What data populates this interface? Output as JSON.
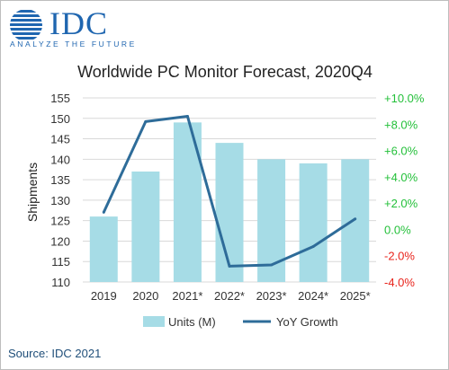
{
  "logo": {
    "wordmark": "IDC",
    "tagline": "ANALYZE THE FUTURE"
  },
  "source": "Source: IDC 2021",
  "colors": {
    "bar": "#a6dce6",
    "line": "#2e6c99",
    "positive_tick": "#24c03a",
    "negative_tick": "#e8231b",
    "brand": "#1f66b0",
    "grid": "#d9d9d9"
  },
  "chart_data": {
    "type": "bar",
    "title": "Worldwide PC Monitor Forecast, 2020Q4",
    "categories": [
      "2019",
      "2020",
      "2021*",
      "2022*",
      "2023*",
      "2024*",
      "2025*"
    ],
    "series": [
      {
        "name": "Units (M)",
        "type": "bar",
        "axis": "left",
        "values": [
          126,
          137,
          149,
          144,
          140,
          139,
          140
        ]
      },
      {
        "name": "YoY Growth",
        "type": "line",
        "axis": "right",
        "values": [
          1.3,
          8.2,
          8.6,
          -2.8,
          -2.7,
          -1.3,
          0.8
        ]
      }
    ],
    "ylabel": "Shipments",
    "ylim": [
      110,
      155
    ],
    "yticks": [
      "110",
      "115",
      "120",
      "125",
      "130",
      "135",
      "140",
      "145",
      "150",
      "155"
    ],
    "y2lim": [
      -4,
      10
    ],
    "y2ticks": [
      "-4.0%",
      "-2.0%",
      "0.0%",
      "+2.0%",
      "+4.0%",
      "+6.0%",
      "+8.0%",
      "+10.0%"
    ],
    "grid": true,
    "legend_position": "bottom"
  }
}
